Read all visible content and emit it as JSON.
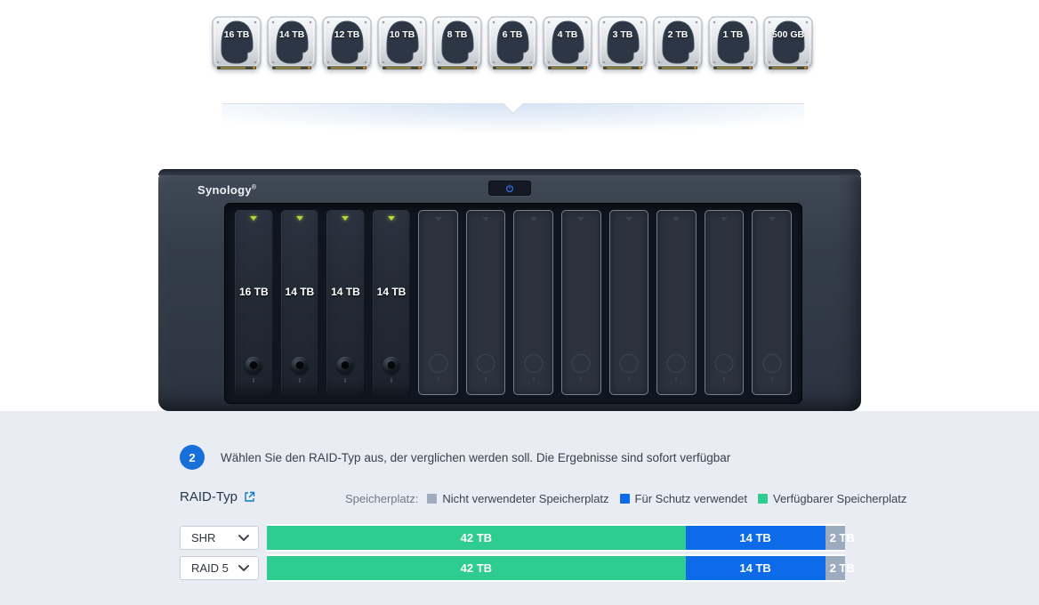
{
  "drives": {
    "items": [
      "16 TB",
      "14 TB",
      "12 TB",
      "10 TB",
      "8 TB",
      "6 TB",
      "4 TB",
      "3 TB",
      "2 TB",
      "1 TB",
      "500 GB"
    ]
  },
  "nas": {
    "brand": "Synology",
    "bays": [
      {
        "label": "16 TB",
        "occupied": true
      },
      {
        "label": "14 TB",
        "occupied": true
      },
      {
        "label": "14 TB",
        "occupied": true
      },
      {
        "label": "14 TB",
        "occupied": true
      },
      {
        "label": "",
        "occupied": false
      },
      {
        "label": "",
        "occupied": false
      },
      {
        "label": "",
        "occupied": false
      },
      {
        "label": "",
        "occupied": false
      },
      {
        "label": "",
        "occupied": false
      },
      {
        "label": "",
        "occupied": false
      },
      {
        "label": "",
        "occupied": false
      },
      {
        "label": "",
        "occupied": false
      }
    ]
  },
  "step": {
    "number": "2",
    "text": "Wählen Sie den RAID-Typ aus, der verglichen werden soll. Die Ergebnisse sind sofort verfügbar"
  },
  "raid": {
    "label": "RAID-Typ",
    "legend_title": "Speicherplatz:",
    "legend": [
      {
        "label": "Nicht verwendeter Speicherplatz",
        "color": "#9dabbf"
      },
      {
        "label": "Für Schutz verwendet",
        "color": "#0d6be9"
      },
      {
        "label": "Verfügbarer Speicherplatz",
        "color": "#2ecc8f"
      }
    ],
    "kind_colors": {
      "unused": "#9dabbf",
      "protection": "#0d6be9",
      "available": "#2ecc8f"
    },
    "rows": [
      {
        "type": "SHR",
        "segments": [
          {
            "label": "42 TB",
            "tb": 42,
            "kind": "available"
          },
          {
            "label": "14 TB",
            "tb": 14,
            "kind": "protection"
          },
          {
            "label": "2 TB",
            "tb": 2,
            "kind": "unused"
          }
        ]
      },
      {
        "type": "RAID 5",
        "segments": [
          {
            "label": "42 TB",
            "tb": 42,
            "kind": "available"
          },
          {
            "label": "14 TB",
            "tb": 14,
            "kind": "protection"
          },
          {
            "label": "2 TB",
            "tb": 2,
            "kind": "unused"
          }
        ]
      }
    ]
  },
  "colors": {
    "accent_blue": "#176fd9",
    "section_bg": "#e9edf3",
    "nas_body": "#343d4a",
    "led_green": "#b9d63a"
  }
}
